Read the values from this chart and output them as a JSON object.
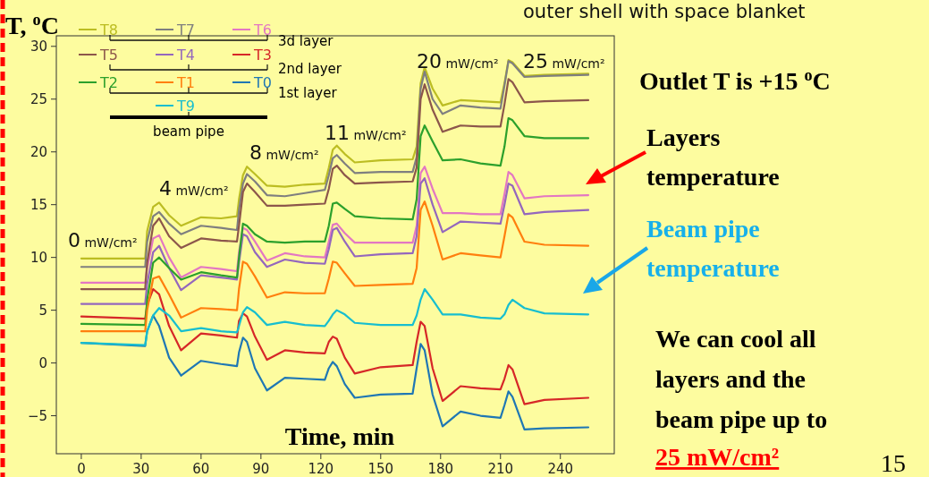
{
  "chart_data": {
    "type": "line",
    "title": "outer shell with space blanket",
    "xlabel": "Time, min",
    "ylabel": "T, $^{o}$C",
    "x": [
      0,
      32,
      33,
      36,
      39,
      44,
      50,
      60,
      70,
      78,
      79,
      81,
      83,
      87,
      93,
      102,
      112,
      122,
      124,
      126,
      128,
      132,
      137,
      150,
      166,
      168,
      170,
      172,
      176,
      181,
      190,
      200,
      210,
      212,
      214,
      216,
      222,
      232,
      254
    ],
    "series": [
      {
        "name": "T8",
        "color": "#bcbd22",
        "values": [
          9.9,
          9.9,
          12.5,
          14.8,
          15.2,
          14.0,
          13.0,
          13.8,
          13.7,
          13.9,
          15.5,
          17.8,
          18.6,
          17.9,
          16.8,
          16.7,
          16.9,
          17.0,
          18.5,
          20.2,
          20.6,
          19.8,
          19.0,
          19.2,
          19.3,
          20.5,
          26.5,
          28.0,
          26.0,
          24.4,
          24.9,
          24.8,
          24.7,
          26.5,
          28.7,
          28.5,
          27.2,
          27.3,
          27.4
        ]
      },
      {
        "name": "T7",
        "color": "#7f7f7f",
        "values": [
          9.1,
          9.1,
          11.5,
          13.9,
          14.3,
          13.2,
          12.2,
          13.0,
          12.8,
          12.6,
          14.5,
          17.0,
          17.9,
          17.2,
          15.9,
          15.8,
          16.1,
          16.4,
          17.8,
          19.4,
          19.7,
          18.9,
          18.0,
          18.1,
          18.1,
          19.5,
          26.0,
          27.6,
          25.0,
          23.6,
          24.4,
          24.2,
          24.1,
          26.3,
          28.6,
          28.4,
          27.1,
          27.2,
          27.3
        ]
      },
      {
        "name": "T6",
        "color": "#e377c2",
        "values": [
          7.6,
          7.6,
          9.0,
          11.8,
          12.1,
          10.0,
          8.1,
          9.1,
          8.9,
          8.7,
          10.5,
          12.8,
          12.6,
          11.5,
          9.7,
          10.4,
          10.1,
          10.0,
          11.5,
          13.1,
          13.2,
          12.3,
          11.4,
          11.4,
          11.4,
          13.0,
          18.0,
          18.6,
          16.5,
          14.2,
          14.2,
          14.1,
          14.1,
          16.0,
          18.1,
          17.8,
          15.6,
          15.8,
          15.9
        ]
      },
      {
        "name": "T5",
        "color": "#8c564b",
        "values": [
          7.0,
          7.0,
          9.5,
          13.0,
          13.7,
          12.0,
          10.9,
          11.8,
          11.6,
          11.5,
          13.0,
          16.2,
          17.0,
          16.2,
          14.9,
          14.9,
          15.0,
          15.1,
          16.5,
          18.4,
          18.7,
          17.8,
          17.0,
          17.1,
          17.2,
          18.5,
          25.0,
          26.4,
          24.0,
          21.9,
          22.5,
          22.4,
          22.4,
          24.5,
          26.9,
          26.6,
          24.7,
          24.8,
          24.9
        ]
      },
      {
        "name": "T4",
        "color": "#9467bd",
        "values": [
          5.6,
          5.6,
          7.5,
          10.5,
          11.1,
          9.0,
          6.9,
          8.3,
          8.1,
          7.9,
          9.5,
          12.2,
          12.0,
          10.5,
          9.1,
          9.8,
          9.5,
          9.4,
          10.8,
          12.6,
          12.8,
          11.5,
          10.1,
          10.3,
          10.4,
          12.0,
          17.0,
          17.5,
          15.0,
          12.4,
          13.4,
          13.3,
          13.2,
          15.0,
          17.0,
          16.8,
          14.1,
          14.3,
          14.5
        ]
      },
      {
        "name": "T3",
        "color": "#d62728",
        "values": [
          4.4,
          4.2,
          5.5,
          7.0,
          6.5,
          3.5,
          1.2,
          2.8,
          2.6,
          2.4,
          4.0,
          4.7,
          4.4,
          2.5,
          0.3,
          1.2,
          1.0,
          0.9,
          2.0,
          2.5,
          2.3,
          0.5,
          -1.0,
          -0.4,
          -0.2,
          2.0,
          3.9,
          3.5,
          -0.5,
          -3.6,
          -2.2,
          -2.4,
          -2.5,
          -1.5,
          -0.2,
          -0.6,
          -3.9,
          -3.5,
          -3.3
        ]
      },
      {
        "name": "T2",
        "color": "#2ca02c",
        "values": [
          3.7,
          3.6,
          6.0,
          9.5,
          10.0,
          9.0,
          7.9,
          8.6,
          8.3,
          8.1,
          10.0,
          13.2,
          13.0,
          12.2,
          11.5,
          11.4,
          11.5,
          11.5,
          13.0,
          15.1,
          15.2,
          14.6,
          13.9,
          13.7,
          13.6,
          15.5,
          21.5,
          22.5,
          21.0,
          19.2,
          19.3,
          18.9,
          18.7,
          20.5,
          23.2,
          23.0,
          21.5,
          21.3,
          21.3
        ]
      },
      {
        "name": "T1",
        "color": "#ff7f0e",
        "values": [
          3.0,
          3.0,
          5.0,
          8.0,
          8.2,
          6.5,
          4.3,
          5.2,
          5.1,
          5.0,
          7.0,
          9.6,
          9.4,
          8.2,
          6.2,
          6.7,
          6.6,
          6.6,
          8.0,
          9.6,
          9.5,
          8.5,
          7.3,
          7.4,
          7.5,
          9.0,
          14.5,
          15.3,
          13.0,
          9.8,
          10.4,
          10.2,
          10.0,
          12.0,
          14.1,
          13.8,
          11.5,
          11.2,
          11.1
        ]
      },
      {
        "name": "T0",
        "color": "#1f77b4",
        "values": [
          1.9,
          1.6,
          3.0,
          4.5,
          3.5,
          0.5,
          -1.2,
          0.2,
          -0.1,
          -0.3,
          1.0,
          2.4,
          2.0,
          -0.5,
          -2.6,
          -1.4,
          -1.5,
          -1.6,
          -0.5,
          0.1,
          -0.3,
          -2.0,
          -3.3,
          -3.0,
          -2.9,
          -0.5,
          1.8,
          1.2,
          -3.0,
          -6.0,
          -4.6,
          -5.0,
          -5.2,
          -4.0,
          -2.7,
          -3.2,
          -6.3,
          -6.2,
          -6.1
        ]
      },
      {
        "name": "T9",
        "color": "#17becf",
        "values": [
          1.9,
          1.7,
          3.0,
          4.5,
          5.2,
          4.5,
          3.0,
          3.3,
          3.0,
          2.9,
          3.5,
          4.8,
          5.3,
          4.8,
          3.6,
          3.9,
          3.6,
          3.5,
          4.0,
          4.6,
          5.0,
          4.6,
          3.8,
          3.6,
          3.6,
          4.5,
          6.0,
          7.0,
          6.0,
          4.6,
          4.6,
          4.3,
          4.2,
          4.6,
          5.5,
          6.0,
          5.2,
          4.7,
          4.6
        ]
      }
    ],
    "xlim": [
      -12.5,
      267
    ],
    "ylim": [
      -8.6,
      31
    ],
    "xticks": [
      0,
      30,
      60,
      90,
      120,
      150,
      180,
      210,
      240
    ],
    "yticks": [
      {
        "value": -5,
        "label": "−5"
      },
      0,
      5,
      10,
      15,
      20,
      25,
      30
    ],
    "grid": false,
    "legend": "top left",
    "marker": "none",
    "line_style": "solid",
    "annotations": [
      "0 mW/cm²",
      "4 mW/cm²",
      "8 mW/cm²",
      "11 mW/cm²",
      "20 mW/cm²",
      "25 mW/cm²",
      "3d layer",
      "2nd layer",
      "1st layer",
      "beam pipe",
      "Outlet T is +15  $^{o}$C",
      "Layers temperature",
      "Beam pipe temperature",
      "We can cool all layers and the beam pipe up to",
      "25 mW/cm²",
      "15"
    ]
  }
}
